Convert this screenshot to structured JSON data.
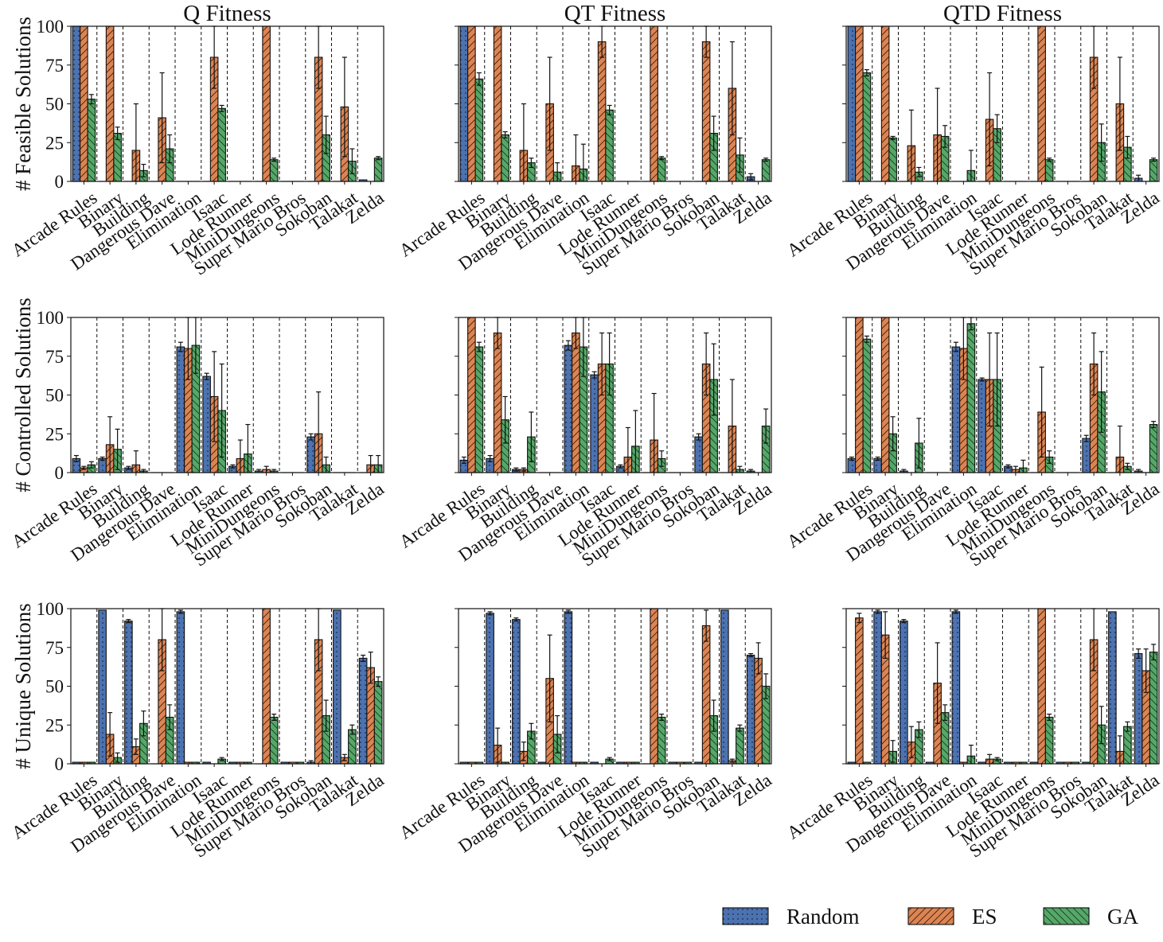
{
  "legend": [
    {
      "name": "Random",
      "color": "#4c72b0",
      "pattern": "dots"
    },
    {
      "name": "ES",
      "color": "#dd8452",
      "pattern": "diag"
    },
    {
      "name": "GA",
      "color": "#55a868",
      "pattern": "backdiag"
    }
  ],
  "chart_data": [
    {
      "type": "bar",
      "title": "Q Fitness",
      "ylabel": "# Feasible Solutions",
      "ylim": [
        0,
        100
      ],
      "yticks": [
        0,
        25,
        50,
        75,
        100
      ],
      "categories": [
        "Arcade Rules",
        "Binary",
        "Building",
        "Dangerous Dave",
        "Elimination",
        "Isaac",
        "Lode Runner",
        "MiniDungeons",
        "Super Mario Bros",
        "Sokoban",
        "Talakat",
        "Zelda"
      ],
      "series": [
        {
          "name": "Random",
          "values": [
            100,
            0,
            0,
            0,
            0,
            0,
            0,
            0,
            0,
            0,
            0,
            1
          ],
          "errors": [
            0,
            0,
            0,
            0,
            0,
            0,
            0,
            0,
            0,
            0,
            0,
            0
          ]
        },
        {
          "name": "ES",
          "values": [
            100,
            100,
            20,
            41,
            0,
            80,
            0,
            100,
            0,
            80,
            48,
            0
          ],
          "errors": [
            0,
            0,
            30,
            29,
            0,
            20,
            0,
            0,
            0,
            20,
            32,
            0
          ]
        },
        {
          "name": "GA",
          "values": [
            53,
            31,
            7,
            21,
            0,
            47,
            0,
            14,
            0,
            30,
            13,
            15
          ],
          "errors": [
            3,
            4,
            4,
            9,
            0,
            2,
            0,
            1,
            0,
            12,
            8,
            1
          ]
        }
      ]
    },
    {
      "type": "bar",
      "title": "QT Fitness",
      "ylabel": "",
      "ylim": [
        0,
        100
      ],
      "yticks": [
        0,
        25,
        50,
        75,
        100
      ],
      "categories": [
        "Arcade Rules",
        "Binary",
        "Building",
        "Dangerous Dave",
        "Elimination",
        "Isaac",
        "Lode Runner",
        "MiniDungeons",
        "Super Mario Bros",
        "Sokoban",
        "Talakat",
        "Zelda"
      ],
      "series": [
        {
          "name": "Random",
          "values": [
            100,
            0,
            0,
            0,
            0,
            0,
            0,
            0,
            0,
            0,
            0,
            3
          ],
          "errors": [
            0,
            0,
            0,
            0,
            0,
            0,
            0,
            0,
            0,
            0,
            0,
            2
          ]
        },
        {
          "name": "ES",
          "values": [
            100,
            100,
            20,
            50,
            10,
            90,
            0,
            100,
            0,
            90,
            60,
            0
          ],
          "errors": [
            0,
            0,
            30,
            30,
            20,
            10,
            0,
            0,
            0,
            10,
            30,
            0
          ]
        },
        {
          "name": "GA",
          "values": [
            66,
            30,
            12,
            6,
            8,
            46,
            0,
            15,
            0,
            31,
            17,
            14
          ],
          "errors": [
            4,
            2,
            3,
            6,
            16,
            3,
            0,
            1,
            0,
            11,
            11,
            1
          ]
        }
      ]
    },
    {
      "type": "bar",
      "title": "QTD Fitness",
      "ylabel": "",
      "ylim": [
        0,
        100
      ],
      "yticks": [
        0,
        25,
        50,
        75,
        100
      ],
      "categories": [
        "Arcade Rules",
        "Binary",
        "Building",
        "Dangerous Dave",
        "Elimination",
        "Isaac",
        "Lode Runner",
        "MiniDungeons",
        "Super Mario Bros",
        "Sokoban",
        "Talakat",
        "Zelda"
      ],
      "series": [
        {
          "name": "Random",
          "values": [
            100,
            0,
            0,
            0,
            0,
            0,
            0,
            0,
            0,
            0,
            0,
            2
          ],
          "errors": [
            0,
            0,
            0,
            0,
            0,
            0,
            0,
            0,
            0,
            0,
            0,
            2
          ]
        },
        {
          "name": "ES",
          "values": [
            100,
            100,
            23,
            30,
            0,
            40,
            0,
            100,
            0,
            80,
            50,
            0
          ],
          "errors": [
            0,
            0,
            23,
            30,
            0,
            30,
            0,
            0,
            0,
            20,
            30,
            0
          ]
        },
        {
          "name": "GA",
          "values": [
            70,
            28,
            6,
            29,
            7,
            34,
            0,
            14,
            0,
            25,
            22,
            14
          ],
          "errors": [
            2,
            1,
            3,
            7,
            13,
            9,
            0,
            1,
            0,
            12,
            7,
            1
          ]
        }
      ]
    },
    {
      "type": "bar",
      "title": "",
      "ylabel": "# Controlled Solutions",
      "ylim": [
        0,
        100
      ],
      "yticks": [
        0,
        25,
        50,
        75,
        100
      ],
      "categories": [
        "Arcade Rules",
        "Binary",
        "Building",
        "Dangerous Dave",
        "Elimination",
        "Isaac",
        "Lode Runner",
        "MiniDungeons",
        "Super Mario Bros",
        "Sokoban",
        "Talakat",
        "Zelda"
      ],
      "series": [
        {
          "name": "Random",
          "values": [
            9,
            9,
            3,
            0,
            81,
            62,
            4,
            1,
            0,
            23,
            0,
            0
          ],
          "errors": [
            2,
            1,
            1,
            0,
            3,
            2,
            1,
            1,
            0,
            2,
            0,
            0
          ]
        },
        {
          "name": "ES",
          "values": [
            3,
            18,
            5,
            0,
            80,
            49,
            9,
            2,
            0,
            25,
            0,
            5
          ],
          "errors": [
            1,
            18,
            9,
            0,
            20,
            29,
            12,
            2,
            0,
            27,
            0,
            6
          ]
        },
        {
          "name": "GA",
          "values": [
            5,
            15,
            1,
            0,
            82,
            40,
            12,
            1,
            0,
            5,
            0,
            5
          ],
          "errors": [
            2,
            13,
            1,
            0,
            18,
            30,
            19,
            1,
            0,
            5,
            0,
            6
          ]
        }
      ]
    },
    {
      "type": "bar",
      "title": "",
      "ylabel": "",
      "ylim": [
        0,
        100
      ],
      "yticks": [
        0,
        25,
        50,
        75,
        100
      ],
      "categories": [
        "Arcade Rules",
        "Binary",
        "Building",
        "Dangerous Dave",
        "Elimination",
        "Isaac",
        "Lode Runner",
        "MiniDungeons",
        "Super Mario Bros",
        "Sokoban",
        "Talakat",
        "Zelda"
      ],
      "series": [
        {
          "name": "Random",
          "values": [
            8,
            9,
            2,
            0,
            82,
            63,
            4,
            0,
            0,
            23,
            0,
            1
          ],
          "errors": [
            2,
            2,
            1,
            0,
            3,
            2,
            1,
            0,
            0,
            2,
            0,
            1
          ]
        },
        {
          "name": "ES",
          "values": [
            100,
            90,
            2,
            0,
            90,
            70,
            10,
            21,
            0,
            70,
            30,
            0
          ],
          "errors": [
            0,
            10,
            1,
            0,
            10,
            20,
            19,
            30,
            0,
            20,
            30,
            0
          ]
        },
        {
          "name": "GA",
          "values": [
            81,
            34,
            23,
            0,
            81,
            70,
            17,
            9,
            0,
            60,
            2,
            30
          ],
          "errors": [
            3,
            15,
            16,
            0,
            19,
            20,
            23,
            5,
            0,
            23,
            2,
            11
          ]
        }
      ]
    },
    {
      "type": "bar",
      "title": "",
      "ylabel": "",
      "ylim": [
        0,
        100
      ],
      "yticks": [
        0,
        25,
        50,
        75,
        100
      ],
      "categories": [
        "Arcade Rules",
        "Binary",
        "Building",
        "Dangerous Dave",
        "Elimination",
        "Isaac",
        "Lode Runner",
        "MiniDungeons",
        "Super Mario Bros",
        "Sokoban",
        "Talakat",
        "Zelda"
      ],
      "series": [
        {
          "name": "Random",
          "values": [
            9,
            9,
            1,
            0,
            81,
            60,
            4,
            0,
            0,
            22,
            0,
            1
          ],
          "errors": [
            1,
            1,
            1,
            0,
            3,
            1,
            1,
            0,
            0,
            2,
            0,
            1
          ]
        },
        {
          "name": "ES",
          "values": [
            100,
            100,
            0,
            0,
            80,
            60,
            2,
            39,
            0,
            70,
            10,
            0
          ],
          "errors": [
            0,
            0,
            0,
            0,
            20,
            30,
            2,
            29,
            0,
            20,
            20,
            0
          ]
        },
        {
          "name": "GA",
          "values": [
            86,
            25,
            19,
            0,
            96,
            60,
            3,
            10,
            0,
            52,
            4,
            31
          ],
          "errors": [
            2,
            11,
            16,
            0,
            4,
            30,
            5,
            4,
            0,
            26,
            2,
            2
          ]
        }
      ]
    },
    {
      "type": "bar",
      "title": "",
      "ylabel": "# Unique Solutions",
      "ylim": [
        0,
        100
      ],
      "yticks": [
        0,
        25,
        50,
        75,
        100
      ],
      "categories": [
        "Arcade Rules",
        "Binary",
        "Building",
        "Dangerous Dave",
        "Elimination",
        "Isaac",
        "Lode Runner",
        "MiniDungeons",
        "Super Mario Bros",
        "Sokoban",
        "Talakat",
        "Zelda"
      ],
      "series": [
        {
          "name": "Random",
          "values": [
            1,
            99,
            92,
            0,
            98,
            1,
            1,
            0,
            1,
            1,
            99,
            68
          ],
          "errors": [
            0,
            0,
            1,
            0,
            1,
            0,
            0,
            0,
            0,
            1,
            0,
            2
          ]
        },
        {
          "name": "ES",
          "values": [
            1,
            19,
            11,
            80,
            1,
            0,
            1,
            100,
            1,
            80,
            4,
            62
          ],
          "errors": [
            0,
            14,
            5,
            20,
            0,
            0,
            0,
            0,
            0,
            20,
            2,
            10
          ]
        },
        {
          "name": "GA",
          "values": [
            1,
            4,
            26,
            30,
            1,
            3,
            1,
            30,
            1,
            31,
            22,
            53
          ],
          "errors": [
            0,
            3,
            8,
            8,
            0,
            1,
            0,
            2,
            0,
            10,
            3,
            3
          ]
        }
      ]
    },
    {
      "type": "bar",
      "title": "",
      "ylabel": "",
      "ylim": [
        0,
        100
      ],
      "yticks": [
        0,
        25,
        50,
        75,
        100
      ],
      "categories": [
        "Arcade Rules",
        "Binary",
        "Building",
        "Dangerous Dave",
        "Elimination",
        "Isaac",
        "Lode Runner",
        "MiniDungeons",
        "Super Mario Bros",
        "Sokoban",
        "Talakat",
        "Zelda"
      ],
      "series": [
        {
          "name": "Random",
          "values": [
            1,
            97,
            93,
            1,
            98,
            1,
            1,
            0,
            1,
            1,
            99,
            70
          ],
          "errors": [
            0,
            1,
            1,
            0,
            1,
            0,
            0,
            0,
            0,
            0,
            0,
            1
          ]
        },
        {
          "name": "ES",
          "values": [
            1,
            12,
            8,
            55,
            1,
            0,
            1,
            100,
            1,
            89,
            2,
            68
          ],
          "errors": [
            0,
            11,
            6,
            28,
            0,
            0,
            0,
            0,
            0,
            10,
            1,
            10
          ]
        },
        {
          "name": "GA",
          "values": [
            1,
            1,
            21,
            19,
            1,
            3,
            1,
            30,
            1,
            31,
            23,
            50
          ],
          "errors": [
            0,
            0,
            5,
            12,
            0,
            1,
            0,
            2,
            0,
            10,
            2,
            8
          ]
        }
      ]
    },
    {
      "type": "bar",
      "title": "",
      "ylabel": "",
      "ylim": [
        0,
        100
      ],
      "yticks": [
        0,
        25,
        50,
        75,
        100
      ],
      "categories": [
        "Arcade Rules",
        "Binary",
        "Building",
        "Dangerous Dave",
        "Elimination",
        "Isaac",
        "Lode Runner",
        "MiniDungeons",
        "Super Mario Bros",
        "Sokoban",
        "Talakat",
        "Zelda"
      ],
      "series": [
        {
          "name": "Random",
          "values": [
            1,
            98,
            92,
            1,
            98,
            1,
            1,
            1,
            1,
            1,
            98,
            71
          ],
          "errors": [
            0,
            1,
            1,
            0,
            1,
            0,
            0,
            0,
            0,
            0,
            0,
            3
          ]
        },
        {
          "name": "ES",
          "values": [
            94,
            83,
            14,
            52,
            1,
            3,
            1,
            100,
            1,
            80,
            8,
            60
          ],
          "errors": [
            3,
            15,
            10,
            26,
            0,
            3,
            0,
            0,
            0,
            20,
            10,
            14
          ]
        },
        {
          "name": "GA",
          "values": [
            1,
            8,
            22,
            33,
            5,
            3,
            1,
            30,
            1,
            25,
            24,
            72
          ],
          "errors": [
            0,
            7,
            5,
            5,
            7,
            1,
            0,
            2,
            0,
            12,
            3,
            5
          ]
        }
      ]
    }
  ]
}
